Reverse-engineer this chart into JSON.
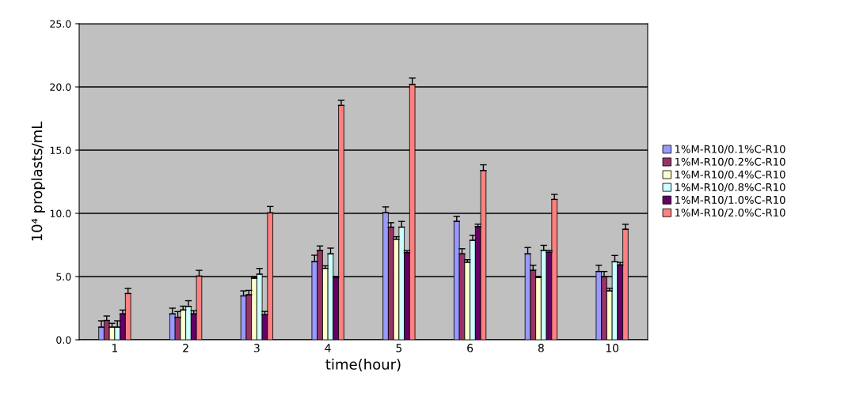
{
  "chart_data": {
    "type": "bar",
    "xlabel": "time(hour)",
    "ylabel": "10⁴ proplasts/mL",
    "categories": [
      "1",
      "2",
      "3",
      "4",
      "5",
      "6",
      "8",
      "10"
    ],
    "series": [
      {
        "name": "1%M-R10/0.1%C-R10",
        "color": "#9999ff",
        "values": [
          1.0,
          2.05,
          3.47,
          6.19,
          10.06,
          9.37,
          6.8,
          5.4
        ],
        "errors": [
          [
            1.0,
            1.5
          ],
          [
            2.05,
            2.5
          ],
          [
            3.47,
            3.87
          ],
          [
            6.19,
            6.69
          ],
          [
            10.06,
            10.51
          ],
          [
            9.37,
            9.77
          ],
          [
            6.8,
            7.3
          ],
          [
            5.4,
            5.9
          ]
        ]
      },
      {
        "name": "1%M-R10/0.2%C-R10",
        "color": "#993366",
        "values": [
          1.53,
          1.78,
          3.56,
          7.07,
          8.91,
          6.8,
          5.5,
          5.0
        ],
        "errors": [
          [
            1.53,
            1.88
          ],
          [
            1.78,
            2.23
          ],
          [
            3.56,
            3.91
          ],
          [
            7.07,
            7.42
          ],
          [
            8.91,
            9.26
          ],
          [
            6.8,
            7.2
          ],
          [
            5.5,
            5.9
          ],
          [
            5.0,
            5.4
          ]
        ]
      },
      {
        "name": "1%M-R10/0.4%C-R10",
        "color": "#ffffcc",
        "values": [
          1.0,
          2.36,
          4.87,
          5.65,
          7.95,
          6.13,
          4.92,
          3.87
        ],
        "errors": [
          [
            1.0,
            1.3
          ],
          [
            2.36,
            2.66
          ],
          [
            4.87,
            4.97
          ],
          [
            5.65,
            5.85
          ],
          [
            7.95,
            8.15
          ],
          [
            6.13,
            6.33
          ],
          [
            4.92,
            5.02
          ],
          [
            3.87,
            4.07
          ]
        ]
      },
      {
        "name": "1%M-R10/0.8%C-R10",
        "color": "#ccffff",
        "values": [
          1.0,
          2.64,
          5.19,
          6.8,
          8.91,
          7.87,
          7.07,
          6.17
        ],
        "errors": [
          [
            1.0,
            1.5
          ],
          [
            2.64,
            3.09
          ],
          [
            5.19,
            5.64
          ],
          [
            6.8,
            7.25
          ],
          [
            8.91,
            9.36
          ],
          [
            7.87,
            8.27
          ],
          [
            7.07,
            7.47
          ],
          [
            6.17,
            6.67
          ]
        ]
      },
      {
        "name": "1%M-R10/1.0%C-R10",
        "color": "#660066",
        "values": [
          2.05,
          2.05,
          1.99,
          4.92,
          6.9,
          8.95,
          6.92,
          5.92
        ],
        "errors": [
          [
            2.05,
            2.35
          ],
          [
            2.05,
            2.3
          ],
          [
            1.99,
            2.24
          ],
          [
            4.92,
            5.02
          ],
          [
            6.9,
            7.05
          ],
          [
            8.95,
            9.15
          ],
          [
            6.92,
            7.07
          ],
          [
            5.92,
            6.12
          ]
        ]
      },
      {
        "name": "1%M-R10/2.0%C-R10",
        "color": "#ff8080",
        "values": [
          3.66,
          5.04,
          10.04,
          18.54,
          20.2,
          13.39,
          11.1,
          8.74
        ],
        "errors": [
          [
            3.66,
            4.06
          ],
          [
            5.04,
            5.49
          ],
          [
            10.04,
            10.54
          ],
          [
            18.54,
            18.94
          ],
          [
            20.2,
            20.7
          ],
          [
            13.39,
            13.84
          ],
          [
            11.1,
            11.5
          ],
          [
            8.74,
            9.14
          ]
        ]
      }
    ],
    "ylim": [
      0,
      25
    ],
    "yticks": [
      {
        "value": 0,
        "label": "0.0"
      },
      {
        "value": 5,
        "label": "5.0"
      },
      {
        "value": 10,
        "label": "10.0"
      },
      {
        "value": 15,
        "label": "15.0"
      },
      {
        "value": 20,
        "label": "20.0"
      },
      {
        "value": 25,
        "label": "25.0"
      }
    ],
    "grid": "y",
    "legend": "right"
  }
}
